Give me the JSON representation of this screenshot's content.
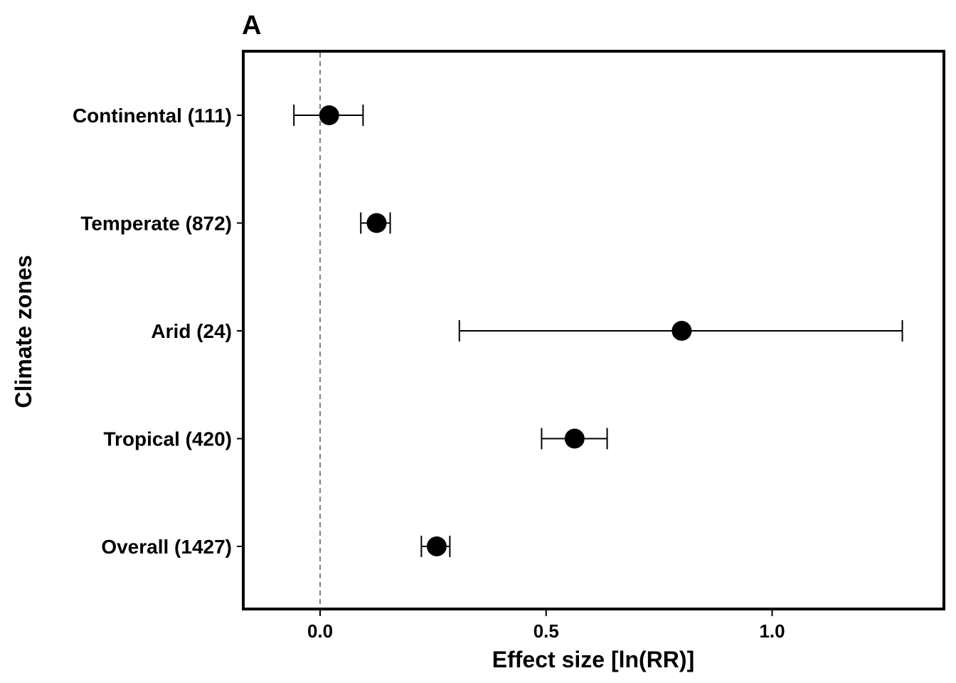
{
  "panel_label": "A",
  "chart_data": {
    "type": "scatter",
    "subtype": "forest-plot",
    "xlabel": "Effect size [ln(RR)]",
    "ylabel": "Climate zones",
    "xlim": [
      -0.17,
      1.38
    ],
    "xticks": [
      0.0,
      0.5,
      1.0
    ],
    "xtick_labels": [
      "0.0",
      "0.5",
      "1.0"
    ],
    "reference_line": 0,
    "grid": false,
    "legend": "none",
    "categories": [
      "Continental  (111)",
      "Temperate  (872)",
      "Arid  (24)",
      "Tropical  (420)",
      "Overall  (1427)"
    ],
    "estimates": [
      0.02,
      0.125,
      0.8,
      0.563,
      0.258
    ],
    "ci_lower": [
      -0.058,
      0.09,
      0.308,
      0.49,
      0.224
    ],
    "ci_upper": [
      0.095,
      0.155,
      1.288,
      0.635,
      0.287
    ],
    "colors": {
      "points": "#000000",
      "reference_line": "#7f7f7f"
    }
  }
}
